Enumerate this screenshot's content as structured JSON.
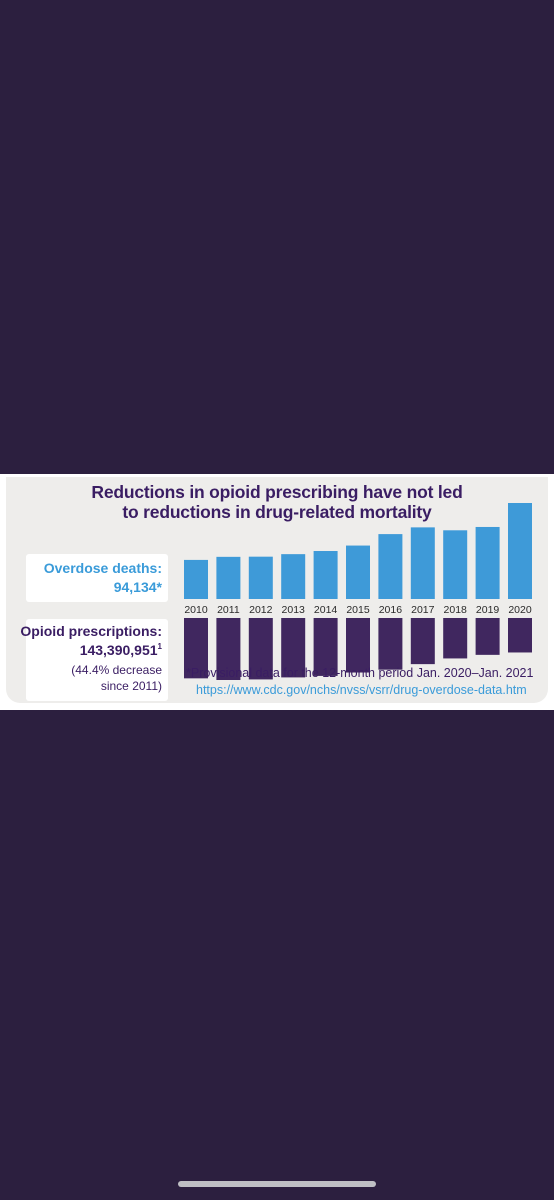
{
  "title_line1": "Reductions in opioid prescribing have not led",
  "title_line2": "to reductions in drug-related mortality",
  "deaths_label": "Overdose deaths:",
  "deaths_value": "94,134*",
  "rx_label": "Opioid prescriptions:",
  "rx_value": "143,390,951",
  "rx_value_sup": "1",
  "rx_note_line1": "(44.4% decrease",
  "rx_note_line2": "since 2011)",
  "footnote": "*Provisional data for the 12-month period Jan. 2020–Jan. 2021",
  "link": "https://www.cdc.gov/nchs/nvss/vsrr/drug-overdose-data.htm",
  "colors": {
    "deaths": "#3e9ad8",
    "prescriptions": "#40275f",
    "title": "#3a1d63",
    "background": "#2c1f3f"
  },
  "chart_data": {
    "type": "bar",
    "categories": [
      "2010",
      "2011",
      "2012",
      "2013",
      "2014",
      "2015",
      "2016",
      "2017",
      "2018",
      "2019",
      "2020"
    ],
    "series": [
      {
        "name": "Overdose deaths",
        "values": [
          38329,
          41340,
          41502,
          43982,
          47055,
          52404,
          63632,
          70237,
          67367,
          70630,
          94134
        ],
        "direction": "up"
      },
      {
        "name": "Opioid prescriptions",
        "values": [
          251000000,
          257900000,
          255500000,
          247100000,
          240900000,
          226800000,
          214900000,
          191900000,
          168200000,
          153300000,
          143390951
        ],
        "direction": "down"
      }
    ]
  }
}
